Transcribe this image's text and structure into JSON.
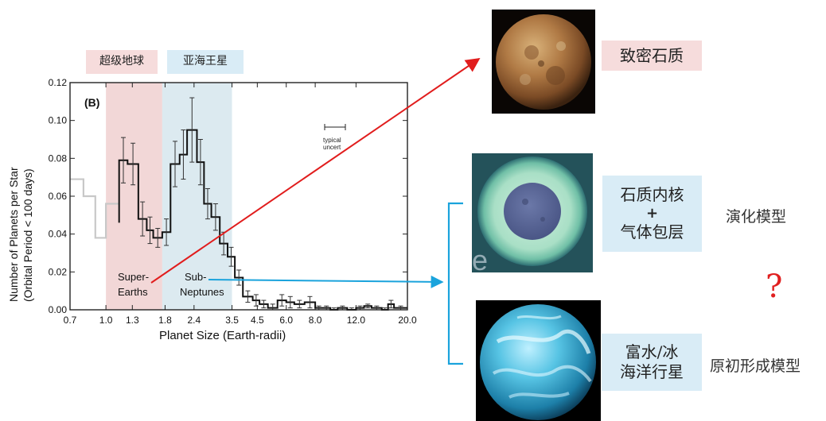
{
  "chart_data": {
    "type": "step",
    "panel_label": "(B)",
    "xlabel": "Planet Size (Earth-radii)",
    "ylabel_line1": "Number of Planets per Star",
    "ylabel_line2": "(Orbital Period < 100 days)",
    "x_scale": "log",
    "xlim": [
      0.7,
      20.0
    ],
    "ylim": [
      0.0,
      0.12
    ],
    "x_ticks": [
      0.7,
      1.0,
      1.3,
      1.8,
      2.4,
      3.5,
      4.5,
      6.0,
      8.0,
      12.0,
      20.0
    ],
    "x_tick_labels": [
      "0.7",
      "1.0",
      "1.3",
      "1.8",
      "2.4",
      "3.5",
      "4.5",
      "6.0",
      "8.0",
      "12.0",
      "20.0"
    ],
    "y_ticks": [
      0.0,
      0.02,
      0.04,
      0.06,
      0.08,
      0.1,
      0.12
    ],
    "y_tick_labels": [
      "0.00",
      "0.02",
      "0.04",
      "0.06",
      "0.08",
      "0.10",
      "0.12"
    ],
    "bands": [
      {
        "label": "超级地球",
        "range": [
          1.0,
          1.75
        ],
        "color": "#f2d7d7"
      },
      {
        "label": "亚海王星",
        "range": [
          1.75,
          3.5
        ],
        "color": "#dceaf0"
      }
    ],
    "incomplete_series": {
      "bin_edges": [
        0.7,
        0.8,
        0.9,
        1.0,
        1.14
      ],
      "values": [
        0.069,
        0.06,
        0.038,
        0.056
      ]
    },
    "series": {
      "bin_edges": [
        1.14,
        1.24,
        1.38,
        1.5,
        1.6,
        1.75,
        1.9,
        2.08,
        2.24,
        2.47,
        2.65,
        2.85,
        3.1,
        3.35,
        3.6,
        3.9,
        4.3,
        4.6,
        5.0,
        5.5,
        6.0,
        6.5,
        7.2,
        8.0,
        8.6,
        9.3,
        10.0,
        11.0,
        12.0,
        13.0,
        14.0,
        15.5,
        16.5,
        17.5,
        20.0
      ],
      "values": [
        0.079,
        0.077,
        0.048,
        0.042,
        0.038,
        0.041,
        0.077,
        0.082,
        0.095,
        0.078,
        0.056,
        0.049,
        0.035,
        0.028,
        0.017,
        0.007,
        0.005,
        0.003,
        0.001,
        0.005,
        0.004,
        0.003,
        0.004,
        0.001,
        0.001,
        0.0,
        0.001,
        0.0,
        0.001,
        0.002,
        0.001,
        0.0,
        0.003,
        0.001
      ],
      "errors": [
        0.012,
        0.011,
        0.009,
        0.007,
        0.005,
        0.007,
        0.012,
        0.013,
        0.017,
        0.012,
        0.008,
        0.007,
        0.006,
        0.005,
        0.004,
        0.003,
        0.003,
        0.002,
        0.002,
        0.003,
        0.003,
        0.002,
        0.003,
        0.001,
        0.001,
        0.001,
        0.001,
        0.001,
        0.001,
        0.001,
        0.001,
        0.001,
        0.002,
        0.001
      ]
    },
    "annotations": {
      "super_earths_line1": "Super-",
      "super_earths_line2": "Earths",
      "sub_neptunes_line1": "Sub-",
      "sub_neptunes_line2": "Neptunes",
      "typical_line1": "typical",
      "typical_line2": "uncert"
    }
  },
  "labels": {
    "super_earth_band": "超级地球",
    "sub_neptune_band": "亚海王星",
    "dense_rock": "致密石质",
    "rocky_core_line1": "石质内核",
    "rocky_core_plus": "+",
    "rocky_core_line2": "气体包层",
    "evolution_model": "演化模型",
    "question_mark": "?",
    "water_world_line1": "富水/冰",
    "water_world_line2": "海洋行星",
    "formation_model": "原初形成模型",
    "stray_letter": "e"
  },
  "colors": {
    "red_arrow": "#e11d1d",
    "blue_arrow": "#1aa3dc",
    "bracket": "#1aa3dc",
    "question_mark": "#e02020"
  }
}
